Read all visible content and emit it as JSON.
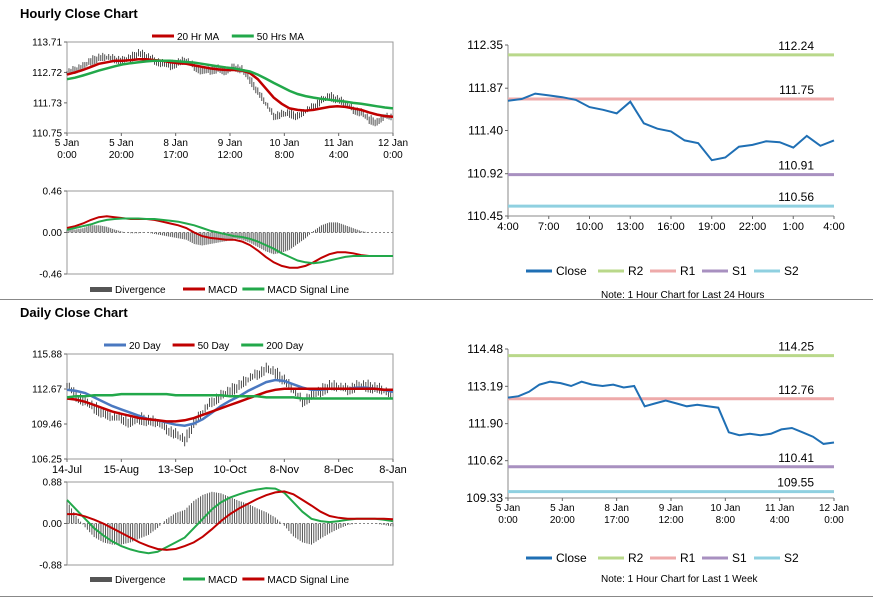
{
  "sections": {
    "hourly_title": "Hourly Close Chart",
    "daily_title": "Daily Close Chart"
  },
  "colors": {
    "red": "#c00000",
    "green": "#22a84a",
    "blue": "#4a78c0",
    "close_blue": "#1f6fb4",
    "r2": "#b9d88a",
    "r1": "#eeaaaa",
    "s1": "#a890c0",
    "s2": "#8fd0e0",
    "divergence": "#555555"
  },
  "chart_data": [
    {
      "id": "hourly_price",
      "type": "line",
      "legend": [
        {
          "name": "20 Hr MA",
          "color": "red"
        },
        {
          "name": "50 Hrs MA",
          "color": "green"
        }
      ],
      "y_ticks": [
        "113.71",
        "112.72",
        "111.73",
        "110.75"
      ],
      "ylim": [
        110.75,
        113.71
      ],
      "x_ticks": [
        [
          "5 Jan",
          "0:00"
        ],
        [
          "5 Jan",
          "20:00"
        ],
        [
          "8 Jan",
          "17:00"
        ],
        [
          "9 Jan",
          "12:00"
        ],
        [
          "10 Jan",
          "8:00"
        ],
        [
          "11 Jan",
          "4:00"
        ],
        [
          "12 Jan",
          "0:00"
        ]
      ],
      "series": [
        {
          "name": "Close",
          "values": [
            112.7,
            112.8,
            112.9,
            113.1,
            113.2,
            113.2,
            113.15,
            113.1,
            113.2,
            113.35,
            113.25,
            113.1,
            113.0,
            112.95,
            113.05,
            113.1,
            112.9,
            112.75,
            112.8,
            112.85,
            112.7,
            112.9,
            112.8,
            112.5,
            112.1,
            111.7,
            111.3,
            111.35,
            111.4,
            111.3,
            111.45,
            111.6,
            111.8,
            111.95,
            111.85,
            111.7,
            111.5,
            111.4,
            111.2,
            111.1,
            111.3,
            111.2
          ]
        },
        {
          "name": "20 Hr MA",
          "values": [
            112.65,
            112.72,
            112.8,
            112.9,
            113.0,
            113.05,
            113.1,
            113.1,
            113.12,
            113.15,
            113.15,
            113.12,
            113.1,
            113.05,
            113.02,
            113.0,
            112.95,
            112.9,
            112.85,
            112.82,
            112.8,
            112.8,
            112.78,
            112.7,
            112.5,
            112.2,
            111.9,
            111.7,
            111.55,
            111.5,
            111.48,
            111.5,
            111.55,
            111.6,
            111.62,
            111.6,
            111.55,
            111.5,
            111.42,
            111.35,
            111.3,
            111.28
          ]
        },
        {
          "name": "50 Hrs MA",
          "values": [
            112.5,
            112.55,
            112.62,
            112.7,
            112.78,
            112.85,
            112.92,
            112.98,
            113.02,
            113.05,
            113.08,
            113.1,
            113.1,
            113.1,
            113.08,
            113.06,
            113.04,
            113.0,
            112.96,
            112.92,
            112.88,
            112.85,
            112.8,
            112.75,
            112.65,
            112.52,
            112.38,
            112.25,
            112.12,
            112.02,
            111.95,
            111.9,
            111.86,
            111.83,
            111.8,
            111.77,
            111.73,
            111.7,
            111.66,
            111.62,
            111.58,
            111.55
          ]
        }
      ]
    },
    {
      "id": "hourly_macd",
      "type": "line",
      "legend": [
        {
          "name": "Divergence",
          "color": "divergence"
        },
        {
          "name": "MACD",
          "color": "red"
        },
        {
          "name": "MACD Signal Line",
          "color": "green"
        }
      ],
      "y_ticks": [
        "0.46",
        "0.00",
        "-0.46"
      ],
      "ylim": [
        -0.46,
        0.46
      ],
      "series": [
        {
          "name": "MACD",
          "values": [
            0.05,
            0.07,
            0.1,
            0.14,
            0.17,
            0.18,
            0.17,
            0.16,
            0.15,
            0.15,
            0.15,
            0.14,
            0.12,
            0.1,
            0.08,
            0.05,
            0.0,
            -0.04,
            -0.06,
            -0.07,
            -0.08,
            -0.08,
            -0.1,
            -0.14,
            -0.2,
            -0.27,
            -0.33,
            -0.37,
            -0.39,
            -0.39,
            -0.37,
            -0.33,
            -0.28,
            -0.24,
            -0.22,
            -0.22,
            -0.23,
            -0.25,
            -0.26,
            -0.26,
            -0.26,
            -0.26
          ]
        },
        {
          "name": "MACD Signal Line",
          "values": [
            0.03,
            0.05,
            0.07,
            0.09,
            0.12,
            0.14,
            0.15,
            0.155,
            0.155,
            0.155,
            0.15,
            0.15,
            0.14,
            0.13,
            0.12,
            0.1,
            0.08,
            0.05,
            0.02,
            0.0,
            -0.02,
            -0.04,
            -0.05,
            -0.07,
            -0.1,
            -0.14,
            -0.18,
            -0.23,
            -0.27,
            -0.31,
            -0.33,
            -0.34,
            -0.33,
            -0.31,
            -0.29,
            -0.27,
            -0.26,
            -0.26,
            -0.26,
            -0.26,
            -0.26,
            -0.26
          ]
        }
      ]
    },
    {
      "id": "hourly_pivot",
      "type": "line",
      "y_ticks": [
        "112.35",
        "111.87",
        "111.40",
        "110.92",
        "110.45"
      ],
      "ylim": [
        110.45,
        112.35
      ],
      "x_ticks": [
        "4:00",
        "7:00",
        "10:00",
        "13:00",
        "16:00",
        "19:00",
        "22:00",
        "1:00",
        "4:00"
      ],
      "levels": [
        {
          "name": "R2",
          "value": 112.24,
          "label": "112.24",
          "color": "r2"
        },
        {
          "name": "R1",
          "value": 111.75,
          "label": "111.75",
          "color": "r1"
        },
        {
          "name": "S1",
          "value": 110.91,
          "label": "110.91",
          "color": "s1"
        },
        {
          "name": "S2",
          "value": 110.56,
          "label": "110.56",
          "color": "s2"
        }
      ],
      "series": [
        {
          "name": "Close",
          "values": [
            111.73,
            111.75,
            111.81,
            111.79,
            111.77,
            111.74,
            111.66,
            111.63,
            111.59,
            111.72,
            111.48,
            111.42,
            111.39,
            111.29,
            111.26,
            111.07,
            111.1,
            111.22,
            111.24,
            111.28,
            111.27,
            111.21,
            111.34,
            111.23,
            111.29
          ]
        }
      ],
      "legend": [
        "Close",
        "R2",
        "R1",
        "S1",
        "S2"
      ],
      "note": "Note: 1 Hour Chart for Last 24 Hours"
    },
    {
      "id": "daily_price",
      "type": "line",
      "legend": [
        {
          "name": "20 Day",
          "color": "blue"
        },
        {
          "name": "50 Day",
          "color": "red"
        },
        {
          "name": "200 Day",
          "color": "green"
        }
      ],
      "y_ticks": [
        "115.88",
        "112.67",
        "109.46",
        "106.25"
      ],
      "ylim": [
        106.25,
        115.88
      ],
      "x_ticks": [
        "14-Jul",
        "15-Aug",
        "13-Sep",
        "10-Oct",
        "8-Nov",
        "8-Dec",
        "8-Jan"
      ],
      "series": [
        {
          "name": "Close",
          "values": [
            113.0,
            112.0,
            111.5,
            111.0,
            110.5,
            110.0,
            110.0,
            109.5,
            110.0,
            109.8,
            109.5,
            109.0,
            108.5,
            108.0,
            109.5,
            110.5,
            111.5,
            112.0,
            112.5,
            113.0,
            113.5,
            114.0,
            114.5,
            114.2,
            113.5,
            112.5,
            111.5,
            112.0,
            112.5,
            113.0,
            112.8,
            112.6,
            112.9,
            113.0,
            112.8,
            112.5,
            111.8
          ]
        },
        {
          "name": "20 Day",
          "values": [
            112.6,
            112.5,
            112.3,
            111.9,
            111.5,
            111.1,
            110.8,
            110.5,
            110.2,
            109.9,
            109.8,
            109.6,
            109.4,
            109.3,
            109.5,
            109.9,
            110.5,
            111.1,
            111.6,
            112.0,
            112.5,
            112.9,
            113.3,
            113.5,
            113.4,
            113.1,
            112.8,
            112.6,
            112.6,
            112.7,
            112.7,
            112.7,
            112.8,
            112.8,
            112.7,
            112.6,
            112.4
          ]
        },
        {
          "name": "50 Day",
          "values": [
            111.8,
            111.7,
            111.5,
            111.2,
            110.9,
            110.6,
            110.4,
            110.2,
            110.0,
            109.9,
            109.8,
            109.7,
            109.7,
            109.8,
            110.0,
            110.3,
            110.6,
            110.9,
            111.2,
            111.5,
            111.8,
            112.1,
            112.4,
            112.6,
            112.7,
            112.7,
            112.7,
            112.7,
            112.7,
            112.7,
            112.7,
            112.7,
            112.7,
            112.7,
            112.7,
            112.6,
            112.6
          ]
        },
        {
          "name": "200 Day",
          "values": [
            111.9,
            112.0,
            112.0,
            112.1,
            112.1,
            112.1,
            112.2,
            112.2,
            112.2,
            112.2,
            112.2,
            112.2,
            112.1,
            112.1,
            112.1,
            112.1,
            112.1,
            112.1,
            112.0,
            112.0,
            112.0,
            112.0,
            111.9,
            111.9,
            111.9,
            111.9,
            111.8,
            111.8,
            111.8,
            111.8,
            111.8,
            111.8,
            111.8,
            111.8,
            111.8,
            111.8,
            111.8
          ]
        }
      ]
    },
    {
      "id": "daily_macd",
      "type": "line",
      "legend": [
        {
          "name": "Divergence",
          "color": "divergence"
        },
        {
          "name": "MACD",
          "color": "green"
        },
        {
          "name": "MACD Signal Line",
          "color": "red"
        }
      ],
      "y_ticks": [
        "0.88",
        "0.00",
        "-0.88"
      ],
      "ylim": [
        -0.88,
        0.88
      ],
      "series": [
        {
          "name": "MACD",
          "values": [
            0.5,
            0.3,
            0.1,
            -0.1,
            -0.25,
            -0.38,
            -0.48,
            -0.55,
            -0.6,
            -0.63,
            -0.6,
            -0.5,
            -0.4,
            -0.3,
            -0.1,
            0.1,
            0.3,
            0.45,
            0.55,
            0.62,
            0.68,
            0.72,
            0.75,
            0.74,
            0.65,
            0.45,
            0.25,
            0.1,
            0.05,
            0.03,
            0.05,
            0.08,
            0.1,
            0.1,
            0.1,
            0.08,
            0.05
          ]
        },
        {
          "name": "MACD Signal Line",
          "values": [
            0.2,
            0.2,
            0.15,
            0.08,
            0.0,
            -0.1,
            -0.2,
            -0.3,
            -0.4,
            -0.48,
            -0.54,
            -0.56,
            -0.54,
            -0.48,
            -0.4,
            -0.28,
            -0.12,
            0.05,
            0.2,
            0.32,
            0.42,
            0.52,
            0.6,
            0.66,
            0.68,
            0.62,
            0.5,
            0.38,
            0.25,
            0.16,
            0.12,
            0.1,
            0.1,
            0.1,
            0.1,
            0.1,
            0.09
          ]
        }
      ]
    },
    {
      "id": "daily_pivot",
      "type": "line",
      "y_ticks": [
        "114.48",
        "113.19",
        "111.90",
        "110.62",
        "109.33"
      ],
      "ylim": [
        109.33,
        114.48
      ],
      "x_ticks": [
        [
          "5 Jan",
          "0:00"
        ],
        [
          "5 Jan",
          "20:00"
        ],
        [
          "8 Jan",
          "17:00"
        ],
        [
          "9 Jan",
          "12:00"
        ],
        [
          "10 Jan",
          "8:00"
        ],
        [
          "11 Jan",
          "4:00"
        ],
        [
          "12 Jan",
          "0:00"
        ]
      ],
      "levels": [
        {
          "name": "R2",
          "value": 114.25,
          "label": "114.25",
          "color": "r2"
        },
        {
          "name": "R1",
          "value": 112.76,
          "label": "112.76",
          "color": "r1"
        },
        {
          "name": "S1",
          "value": 110.41,
          "label": "110.41",
          "color": "s1"
        },
        {
          "name": "S2",
          "value": 109.55,
          "label": "109.55",
          "color": "s2"
        }
      ],
      "series": [
        {
          "name": "Close",
          "values": [
            112.8,
            112.85,
            113.0,
            113.25,
            113.35,
            113.3,
            113.2,
            113.35,
            113.25,
            113.2,
            113.25,
            113.15,
            113.2,
            112.5,
            112.6,
            112.7,
            112.6,
            112.5,
            112.55,
            112.5,
            112.45,
            111.6,
            111.5,
            111.55,
            111.5,
            111.55,
            111.7,
            111.75,
            111.6,
            111.45,
            111.2,
            111.25
          ]
        }
      ],
      "legend": [
        "Close",
        "R2",
        "R1",
        "S1",
        "S2"
      ],
      "note": "Note: 1 Hour Chart for Last 1 Week"
    }
  ]
}
